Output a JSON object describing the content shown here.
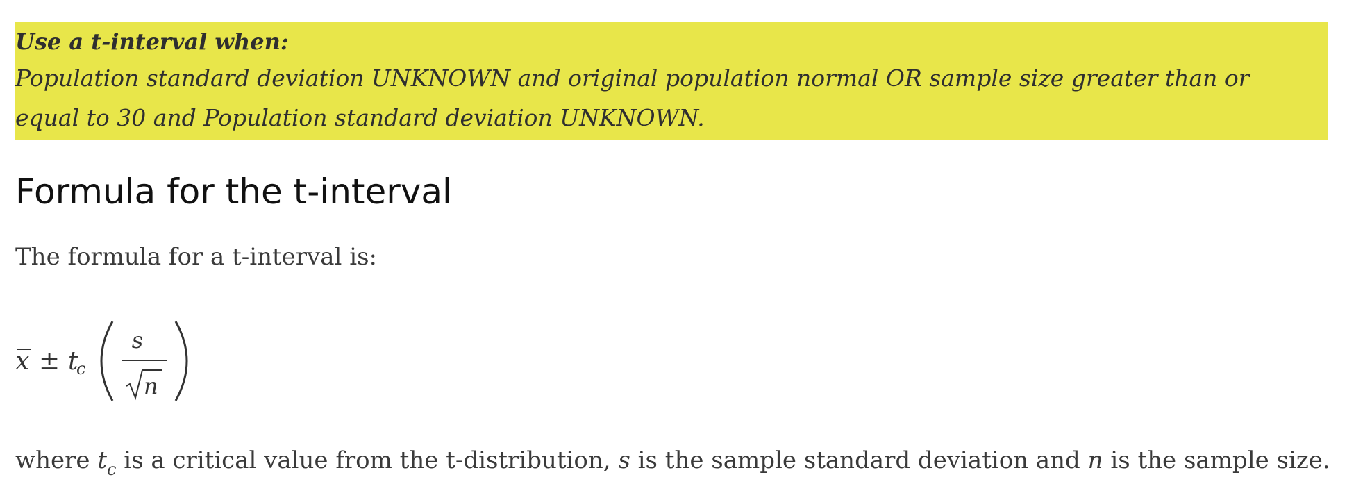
{
  "callout": {
    "title": "Use a t-interval when:",
    "body": "Population standard deviation UNKNOWN and original population normal OR sample size greater than or equal to 30 and Population standard deviation UNKNOWN.",
    "background_color": "#e8e64a"
  },
  "section": {
    "heading": "Formula for the t-interval",
    "intro": "The formula for a t-interval is:"
  },
  "formula": {
    "mean_symbol": "x",
    "plus_minus": "±",
    "critical_symbol": "t",
    "critical_subscript": "c",
    "numerator": "s",
    "denominator_radicand": "n",
    "left_paren": "(",
    "right_paren": ")"
  },
  "footnote": {
    "part1": "where ",
    "t_symbol": "t",
    "t_subscript": "c",
    "part2": " is a critical value from the t-distribution, ",
    "s_symbol": "s",
    "part3": " is the sample standard deviation and ",
    "n_symbol": "n",
    "part4": " is the sample size."
  }
}
